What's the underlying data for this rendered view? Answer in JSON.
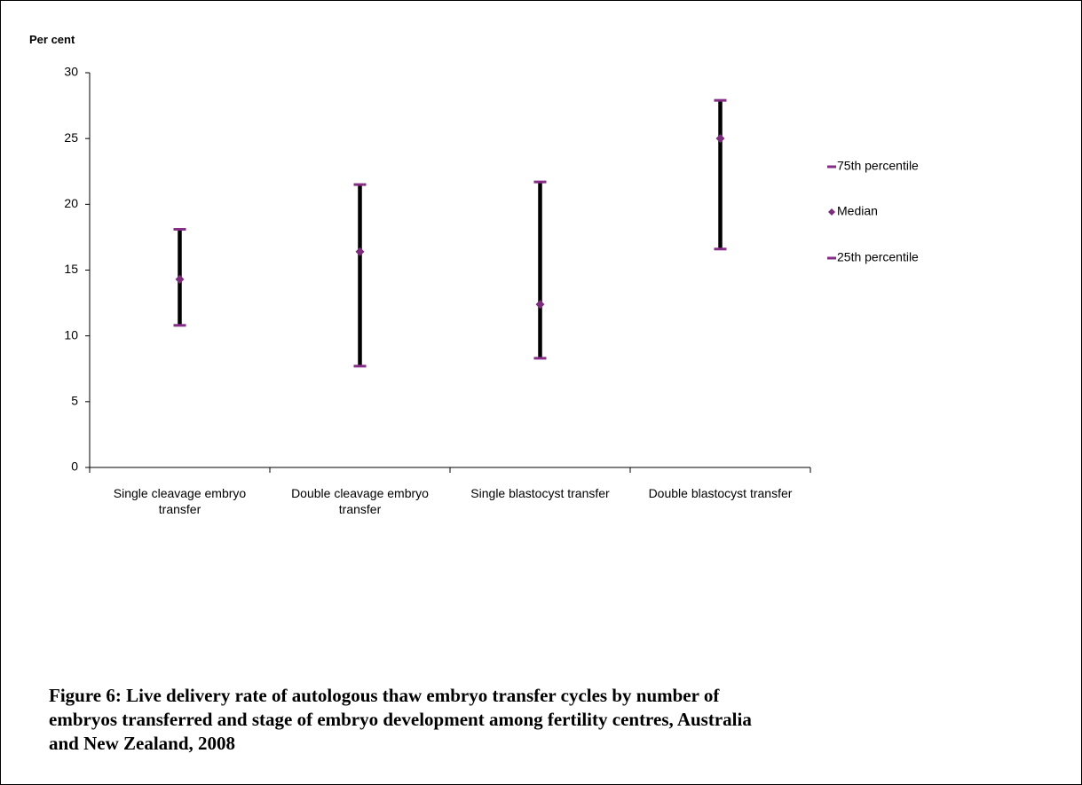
{
  "chart_data": {
    "type": "range",
    "y_label": "Per cent",
    "caption": "Figure 6: Live delivery rate of autologous thaw embryo transfer cycles by number of embryos transferred and stage of embryo development among fertility centres, Australia and New Zealand, 2008",
    "categories": [
      "Single cleavage embryo transfer",
      "Double cleavage embryo transfer",
      "Single blastocyst transfer",
      "Double blastocyst transfer"
    ],
    "series": [
      {
        "name": "75th percentile",
        "color": "#862d86",
        "marker": "dash",
        "values": [
          18.1,
          21.5,
          21.7,
          27.9
        ]
      },
      {
        "name": "Median",
        "color": "#7b2d7b",
        "marker": "diamond",
        "values": [
          14.3,
          16.4,
          12.4,
          25.0
        ]
      },
      {
        "name": "25th percentile",
        "color": "#862d86",
        "marker": "dash",
        "values": [
          10.8,
          7.7,
          8.3,
          16.6
        ]
      }
    ],
    "range_line_color": "#000000",
    "ylim": [
      0,
      30
    ],
    "yticks": [
      0,
      5,
      10,
      15,
      20,
      25,
      30
    ],
    "grid": false,
    "legend": "right"
  }
}
